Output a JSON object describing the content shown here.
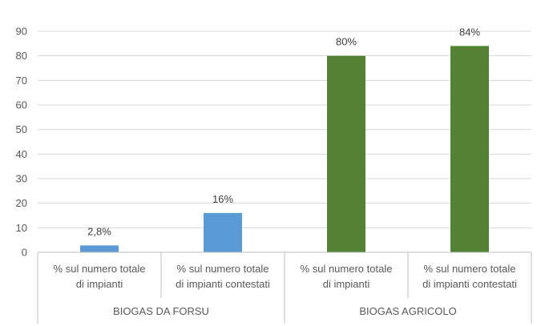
{
  "chart_data": {
    "type": "bar",
    "ylim": [
      0,
      90
    ],
    "yticks": [
      0,
      10,
      20,
      30,
      40,
      50,
      60,
      70,
      80,
      90
    ],
    "grid": true,
    "groups": [
      {
        "label": "BIOGAS DA FORSU",
        "color": "#5b9bd5",
        "bars": [
          {
            "category": [
              "% sul numero totale",
              "di impianti"
            ],
            "value": 2.8,
            "data_label": "2,8%"
          },
          {
            "category": [
              "% sul numero totale",
              "di impianti contestati"
            ],
            "value": 16,
            "data_label": "16%"
          }
        ]
      },
      {
        "label": "BIOGAS AGRICOLO",
        "color": "#548235",
        "bars": [
          {
            "category": [
              "% sul numero totale",
              "di impianti"
            ],
            "value": 80,
            "data_label": "80%"
          },
          {
            "category": [
              "% sul numero totale",
              "di impianti contestati"
            ],
            "value": 84,
            "data_label": "84%"
          }
        ]
      }
    ]
  }
}
